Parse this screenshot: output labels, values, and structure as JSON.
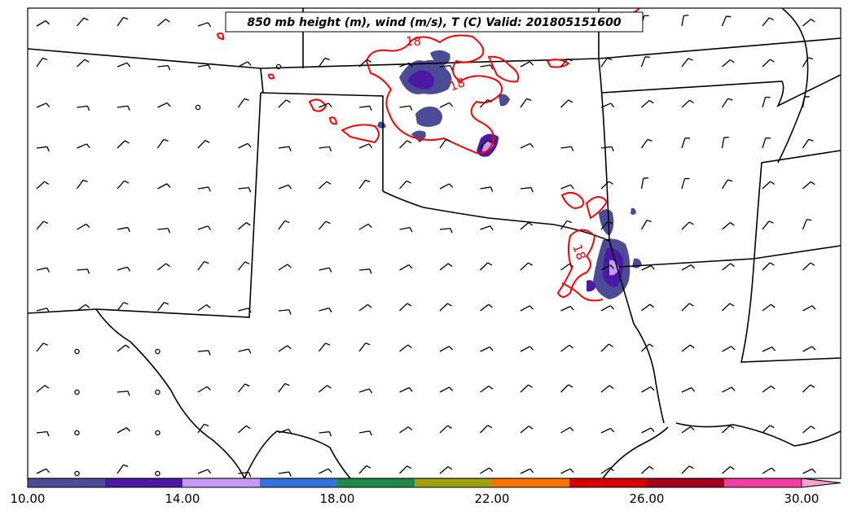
{
  "map": {
    "title": "850 mb height (m), wind (m/s), T (C) Valid: 201805151600",
    "contour_labels": [
      "18",
      "18",
      "18"
    ]
  },
  "colorbar": {
    "colors": [
      "#4b4b96",
      "#4a1aa5",
      "#c79bfb",
      "#3273dc",
      "#1f8a4a",
      "#a0a014",
      "#ff7300",
      "#d60000",
      "#a0001e",
      "#f53ca0",
      "#ffa0d2"
    ],
    "tick_labels": [
      "10.00",
      "14.00",
      "18.00",
      "22.00",
      "26.00",
      "30.00"
    ]
  },
  "colors": {
    "boundaries": "#000000",
    "temperature_contour": "#ff0000",
    "wind_barbs": "#000000"
  }
}
